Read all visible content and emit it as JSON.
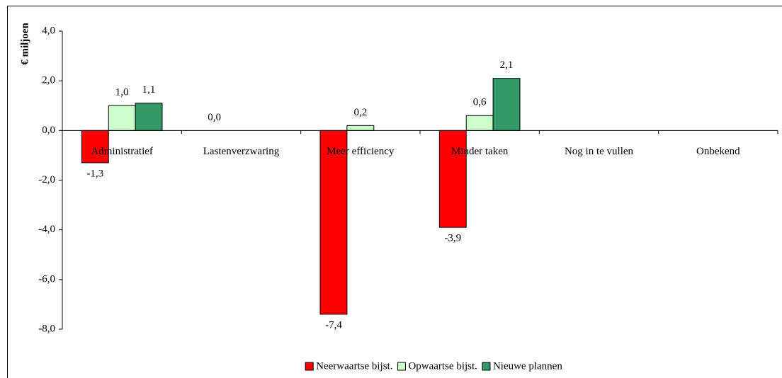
{
  "chart_data": {
    "type": "bar",
    "y_label": "€ miljoen",
    "categories": [
      "Administratief",
      "Lastenverzwaring",
      "Meer efficiency",
      "Minder taken",
      "Nog in te vullen",
      "Onbekend"
    ],
    "series": [
      {
        "name": "Neerwaartse bijst.",
        "color": "#ff0000",
        "values": [
          -1.3,
          0.0,
          -7.4,
          -3.9,
          null,
          null
        ],
        "value_labels": [
          "-1,3",
          "0,0",
          "-7,4",
          "-3,9",
          null,
          null
        ]
      },
      {
        "name": "Opwaartse bijst.",
        "color": "#ccffcc",
        "values": [
          1.0,
          null,
          0.2,
          0.6,
          null,
          null
        ],
        "value_labels": [
          "1,0",
          null,
          "0,2",
          "0,6",
          null,
          null
        ]
      },
      {
        "name": "Nieuwe plannen",
        "color": "#339966",
        "values": [
          1.1,
          null,
          null,
          2.1,
          null,
          null
        ],
        "value_labels": [
          "1,1",
          null,
          null,
          "2,1",
          null,
          null
        ]
      }
    ],
    "ylim": [
      -8,
      4
    ],
    "yticks": [
      {
        "value": -8,
        "label": "-8,0"
      },
      {
        "value": -6,
        "label": "-6,0"
      },
      {
        "value": -4,
        "label": "-4,0"
      },
      {
        "value": -2,
        "label": "-2,0"
      },
      {
        "value": 0,
        "label": "0,0"
      },
      {
        "value": 2,
        "label": "2,0"
      },
      {
        "value": 4,
        "label": "4,0"
      }
    ],
    "grid": false,
    "legend": "bottom"
  }
}
